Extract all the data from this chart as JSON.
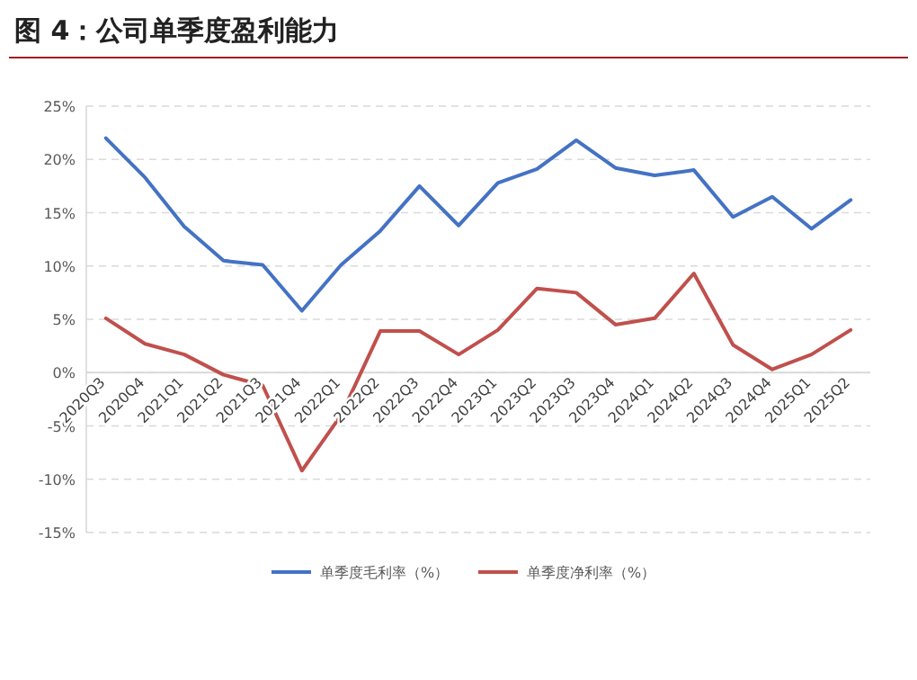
{
  "chart_data": {
    "type": "line",
    "title": "图 4：公司单季度盈利能力",
    "categories": [
      "2020Q3",
      "2020Q4",
      "2021Q1",
      "2021Q2",
      "2021Q3",
      "2021Q4",
      "2022Q1",
      "2022Q2",
      "2022Q3",
      "2022Q4",
      "2023Q1",
      "2023Q2",
      "2023Q3",
      "2023Q4",
      "2024Q1",
      "2024Q2",
      "2024Q3",
      "2024Q4",
      "2025Q1",
      "2025Q2"
    ],
    "series": [
      {
        "name": "单季度毛利率（%）",
        "color": "#4472c4",
        "values": [
          22,
          18.3,
          13.7,
          10.5,
          10.1,
          5.8,
          10.1,
          13.3,
          17.5,
          13.8,
          17.8,
          19.1,
          21.8,
          19.2,
          18.5,
          19.0,
          14.6,
          16.5,
          13.5,
          16.2
        ]
      },
      {
        "name": "单季度净利率（%）",
        "color": "#c0504d",
        "values": [
          5.1,
          2.7,
          1.7,
          -0.2,
          -1.2,
          -9.2,
          -4,
          3.9,
          3.9,
          1.7,
          4.0,
          7.9,
          7.5,
          4.5,
          5.1,
          9.3,
          2.6,
          0.3,
          1.7,
          4.0
        ]
      }
    ],
    "ylim": [
      -15,
      25
    ],
    "yticks": [
      {
        "value": -15,
        "label": "-15%"
      },
      {
        "value": -10,
        "label": "-10%"
      },
      {
        "value": -5,
        "label": "-5%"
      },
      {
        "value": 0,
        "label": "0%"
      },
      {
        "value": 5,
        "label": "5%"
      },
      {
        "value": 10,
        "label": "10%"
      },
      {
        "value": 15,
        "label": "15%"
      },
      {
        "value": 20,
        "label": "20%"
      },
      {
        "value": 25,
        "label": "25%"
      }
    ],
    "grid": "y",
    "legend": "bottom",
    "marker": "none",
    "line_style": "solid"
  }
}
